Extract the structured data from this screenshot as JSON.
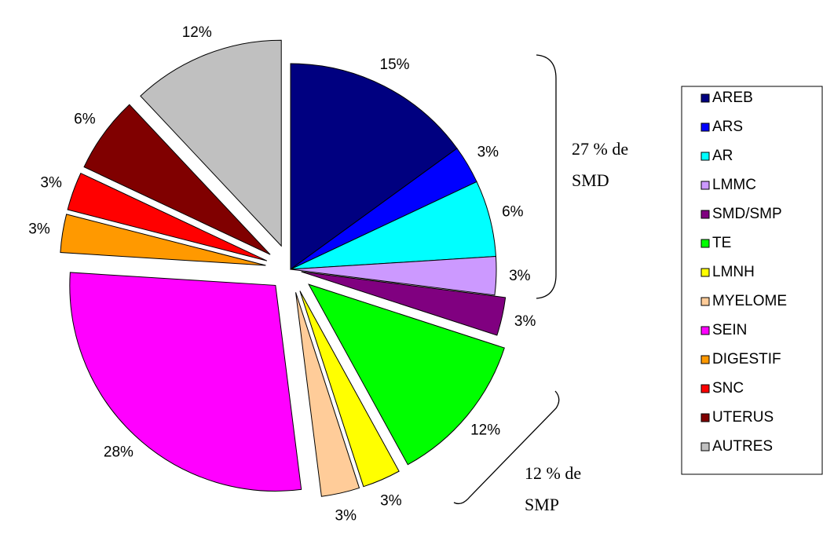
{
  "chart_data": {
    "type": "pie",
    "categories": [
      "AREB",
      "ARS",
      "AR",
      "LMMC",
      "SMD/SMP",
      "TE",
      "LMNH",
      "MYELOME",
      "SEIN",
      "DIGESTIF",
      "SNC",
      "UTERUS",
      "AUTRES"
    ],
    "values": [
      15,
      3,
      6,
      3,
      3,
      12,
      3,
      3,
      28,
      3,
      3,
      6,
      12
    ],
    "value_labels": [
      "15%",
      "3%",
      "6%",
      "3%",
      "3%",
      "12%",
      "3%",
      "3%",
      "28%",
      "3%",
      "3%",
      "6%",
      "12%"
    ],
    "colors": [
      "#000080",
      "#0000FF",
      "#00FFFF",
      "#CC99FF",
      "#800080",
      "#00FF00",
      "#FFFF00",
      "#FFCC99",
      "#FF00FF",
      "#FF9900",
      "#FF0000",
      "#800000",
      "#C0C0C0"
    ],
    "legend": "right",
    "annotations": [
      [
        "27 % de",
        "SMD"
      ],
      [
        "12 % de",
        "SMP"
      ]
    ]
  }
}
